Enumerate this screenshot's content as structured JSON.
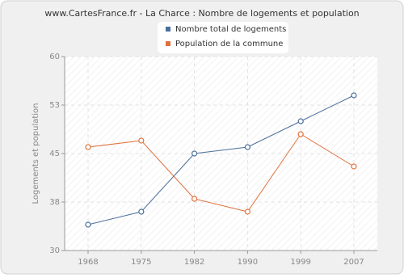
{
  "chart_data": {
    "type": "line",
    "title": "www.CartesFrance.fr - La Charce : Nombre de logements et population",
    "y_label": "Logements et population",
    "categories": [
      "1968",
      "1975",
      "1982",
      "1990",
      "1999",
      "2007"
    ],
    "series": [
      {
        "name": "Nombre total de logements",
        "color": "#4a6f9a",
        "values": [
          34,
          36,
          45,
          46,
          50,
          54
        ]
      },
      {
        "name": "Population de la commune",
        "color": "#e0703c",
        "values": [
          46,
          47,
          38,
          36,
          48,
          43
        ]
      }
    ],
    "ylim": [
      30,
      60
    ],
    "yticks": [
      30,
      {
        "value": 37.5,
        "label": "38"
      },
      45,
      {
        "value": 52.5,
        "label": "53"
      },
      60
    ],
    "grid": true
  }
}
